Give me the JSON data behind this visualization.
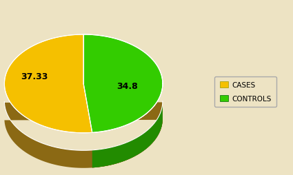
{
  "labels": [
    "CASES",
    "CONTROLS"
  ],
  "values": [
    34.8,
    37.33
  ],
  "colors": [
    "#F5C000",
    "#33CC00"
  ],
  "shadow_colors_cases": [
    "#8B6914",
    "#7A5C00"
  ],
  "shadow_colors_controls": [
    "#228B00",
    "#1A7000"
  ],
  "label_cases": "34.8",
  "label_controls": "37.33",
  "background_color": "#EDE3C3",
  "figure_width": 4.25,
  "figure_height": 2.55
}
